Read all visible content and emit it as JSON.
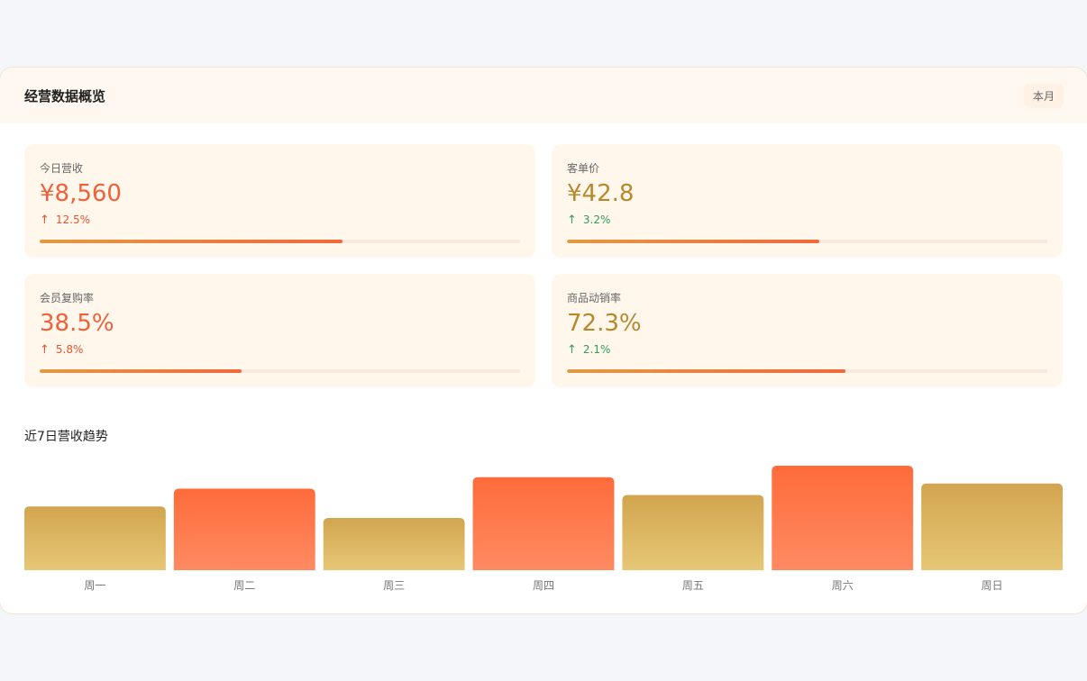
{
  "header": {
    "title": "经营数据概览",
    "period": "本月"
  },
  "stats": [
    {
      "label": "今日营收",
      "value": "¥8,560",
      "change": "12.5%",
      "progress": 0.63,
      "tone": "red",
      "change_tone": "red"
    },
    {
      "label": "客单价",
      "value": "¥42.8",
      "change": "3.2%",
      "progress": 0.525,
      "tone": "gold",
      "change_tone": "green"
    },
    {
      "label": "会员复购率",
      "value": "38.5%",
      "change": "5.8%",
      "progress": 0.42,
      "tone": "red",
      "change_tone": "red"
    },
    {
      "label": "商品动销率",
      "value": "72.3%",
      "change": "2.1%",
      "progress": 0.58,
      "tone": "gold",
      "change_tone": "green"
    }
  ],
  "icons": {
    "up": "arrow-up-icon"
  },
  "chart_title": "近7日营收趋势",
  "chart_data": {
    "type": "bar",
    "categories": [
      "周一",
      "周二",
      "周三",
      "周四",
      "周五",
      "周六",
      "周日"
    ],
    "values": [
      61,
      78,
      50,
      89,
      72,
      100,
      83
    ],
    "ylim": [
      0,
      100
    ],
    "grid": false,
    "colors": [
      "gold",
      "red",
      "gold",
      "red",
      "gold",
      "red",
      "gold"
    ]
  },
  "palette": {
    "red_top": "#ff6b3a",
    "red_bottom": "#ff8a62",
    "gold_top": "#d2a54f",
    "gold_bottom": "#e6c775"
  }
}
